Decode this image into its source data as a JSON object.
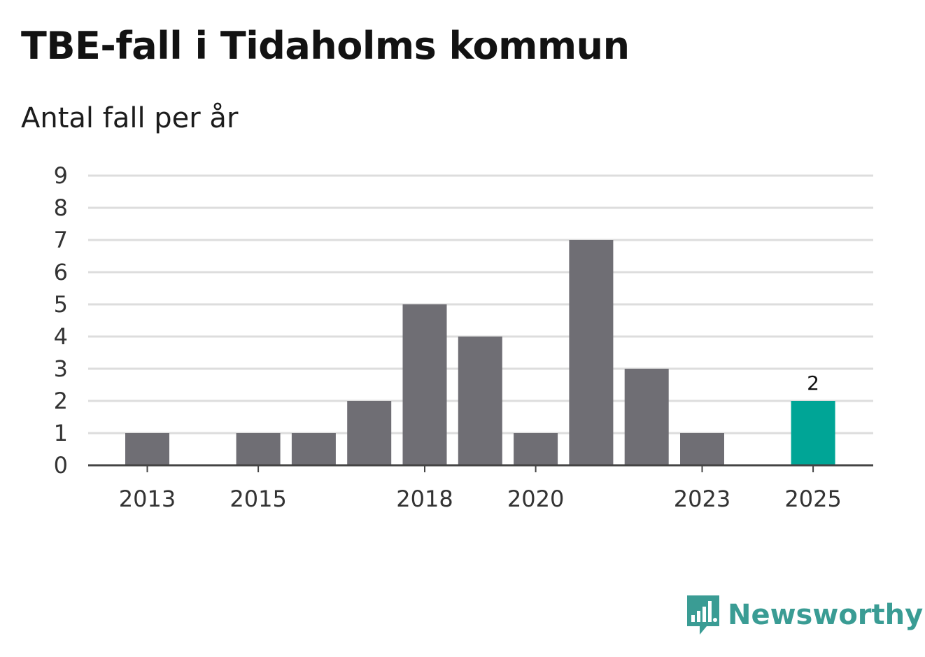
{
  "title": "TBE-fall i Tidaholms kommun",
  "subtitle": "Antal fall per år",
  "brand": {
    "name": "Newsworthy",
    "icon": "bar-chart-speech-bubble-icon",
    "color": "#3a9c94"
  },
  "colors": {
    "bar": "#6f6e74",
    "highlight": "#00a596",
    "grid": "#dddddd",
    "axis": "#444444"
  },
  "chart_data": {
    "type": "bar",
    "title": "TBE-fall i Tidaholms kommun",
    "subtitle": "Antal fall per år",
    "categories": [
      "2013",
      "2014",
      "2015",
      "2016",
      "2017",
      "2018",
      "2019",
      "2020",
      "2021",
      "2022",
      "2023",
      "2024",
      "2025"
    ],
    "values": [
      1,
      0,
      1,
      1,
      2,
      5,
      4,
      1,
      7,
      3,
      1,
      0,
      2
    ],
    "x_tick_labels": [
      "2013",
      "2015",
      "2018",
      "2020",
      "2023",
      "2025"
    ],
    "y_ticks": [
      0,
      1,
      2,
      3,
      4,
      5,
      6,
      7,
      8,
      9
    ],
    "ylim": [
      0,
      9
    ],
    "grid": true,
    "highlight": {
      "category": "2025",
      "label": "2"
    }
  }
}
